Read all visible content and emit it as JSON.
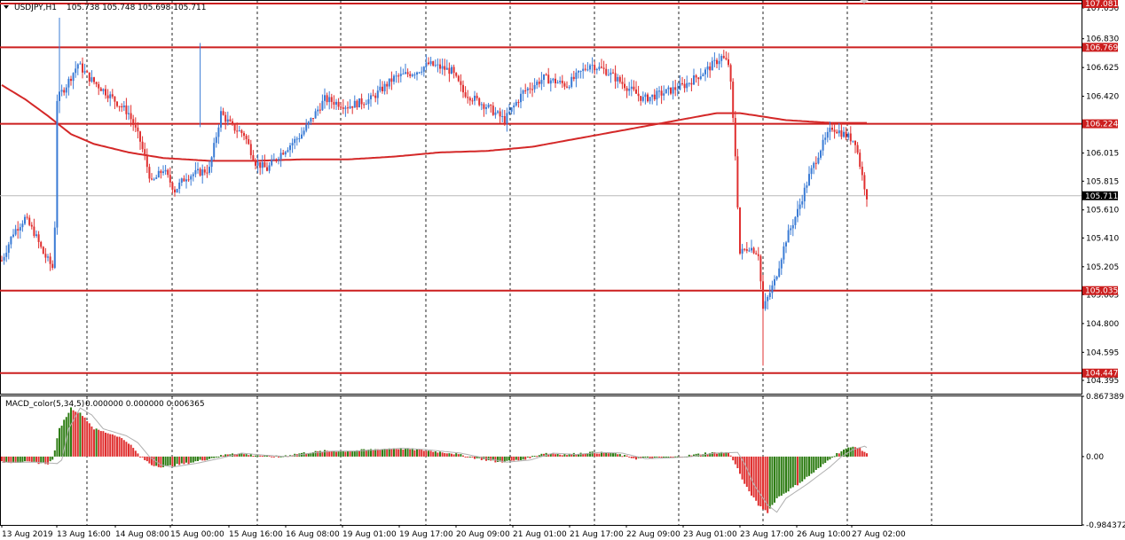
{
  "header": {
    "symbol_label": "USDJPY,H1",
    "ohlc_label": "105.738 105.748 105.698 105.711"
  },
  "macd_header": {
    "label": "MACD_color(5,34,5)",
    "values_label": "0.000000 0.000000 0.006365"
  },
  "colors": {
    "bull": "#3a7bd5",
    "bear": "#e03030",
    "level_line": "#cc1f1f",
    "ma_line": "#d42828",
    "macd_up": "#2e7d14",
    "macd_down": "#e03030",
    "signal": "#b0b0b0",
    "grid": "#000000"
  },
  "chart_data": [
    {
      "type": "candlestick",
      "symbol": "USDJPY",
      "timeframe": "H1",
      "ylim": [
        104.3,
        107.1
      ],
      "y_ticks": [
        "107.050",
        "106.830",
        "106.625",
        "106.420",
        "106.015",
        "105.815",
        "105.610",
        "105.410",
        "105.205",
        "105.005",
        "104.800",
        "104.595",
        "104.395"
      ],
      "price_levels": [
        {
          "value": 107.081,
          "label": "107.081"
        },
        {
          "value": 106.769,
          "label": "106.769"
        },
        {
          "value": 106.224,
          "label": "106.224"
        },
        {
          "value": 105.035,
          "label": "105.035"
        },
        {
          "value": 104.447,
          "label": "104.447"
        }
      ],
      "current_price": {
        "value": 105.711,
        "label": "105.711"
      },
      "x_labels": [
        "13 Aug 2019",
        "13 Aug 16:00",
        "14 Aug 08:00",
        "15 Aug 00:00",
        "15 Aug 16:00",
        "16 Aug 08:00",
        "19 Aug 01:00",
        "19 Aug 17:00",
        "20 Aug 09:00",
        "21 Aug 01:00",
        "21 Aug 17:00",
        "22 Aug 09:00",
        "23 Aug 01:00",
        "23 Aug 17:00",
        "26 Aug 10:00",
        "27 Aug 02:00"
      ],
      "close_path": [
        [
          0,
          105.25
        ],
        [
          5,
          105.45
        ],
        [
          10,
          105.55
        ],
        [
          14,
          105.45
        ],
        [
          18,
          105.3
        ],
        [
          22,
          105.2
        ],
        [
          23,
          105.5
        ],
        [
          24,
          106.4
        ],
        [
          28,
          106.5
        ],
        [
          33,
          106.65
        ],
        [
          38,
          106.55
        ],
        [
          45,
          106.45
        ],
        [
          55,
          106.3
        ],
        [
          60,
          106.1
        ],
        [
          65,
          105.8
        ],
        [
          70,
          105.9
        ],
        [
          75,
          105.75
        ],
        [
          80,
          105.85
        ],
        [
          90,
          105.9
        ],
        [
          95,
          106.3
        ],
        [
          100,
          106.2
        ],
        [
          105,
          106.15
        ],
        [
          110,
          105.95
        ],
        [
          115,
          105.9
        ],
        [
          120,
          106.0
        ],
        [
          130,
          106.15
        ],
        [
          140,
          106.4
        ],
        [
          150,
          106.35
        ],
        [
          160,
          106.4
        ],
        [
          170,
          106.55
        ],
        [
          180,
          106.6
        ],
        [
          185,
          106.65
        ],
        [
          195,
          106.6
        ],
        [
          200,
          106.45
        ],
        [
          210,
          106.35
        ],
        [
          218,
          106.25
        ],
        [
          226,
          106.45
        ],
        [
          235,
          106.55
        ],
        [
          245,
          106.5
        ],
        [
          255,
          106.65
        ],
        [
          262,
          106.6
        ],
        [
          270,
          106.5
        ],
        [
          278,
          106.4
        ],
        [
          288,
          106.45
        ],
        [
          296,
          106.5
        ],
        [
          305,
          106.6
        ],
        [
          312,
          106.7
        ],
        [
          315,
          106.65
        ],
        [
          316,
          106.5
        ],
        [
          318,
          106.0
        ],
        [
          320,
          105.3
        ],
        [
          324,
          105.35
        ],
        [
          328,
          105.3
        ],
        [
          330,
          104.9
        ],
        [
          335,
          105.1
        ],
        [
          340,
          105.4
        ],
        [
          345,
          105.6
        ],
        [
          350,
          105.85
        ],
        [
          355,
          106.05
        ],
        [
          360,
          106.2
        ],
        [
          365,
          106.15
        ],
        [
          370,
          106.1
        ],
        [
          373,
          105.85
        ],
        [
          375,
          105.71
        ]
      ],
      "ma_path": [
        [
          0,
          106.5
        ],
        [
          10,
          106.4
        ],
        [
          20,
          106.28
        ],
        [
          30,
          106.15
        ],
        [
          40,
          106.08
        ],
        [
          55,
          106.02
        ],
        [
          70,
          105.98
        ],
        [
          90,
          105.96
        ],
        [
          110,
          105.96
        ],
        [
          130,
          105.97
        ],
        [
          150,
          105.97
        ],
        [
          170,
          105.99
        ],
        [
          190,
          106.02
        ],
        [
          210,
          106.03
        ],
        [
          230,
          106.06
        ],
        [
          250,
          106.12
        ],
        [
          270,
          106.18
        ],
        [
          290,
          106.24
        ],
        [
          310,
          106.3
        ],
        [
          320,
          106.3
        ],
        [
          340,
          106.25
        ],
        [
          360,
          106.23
        ],
        [
          375,
          106.23
        ]
      ]
    },
    {
      "type": "bar",
      "name": "MACD_color(5,34,5)",
      "ylim": [
        -0.984372,
        0.867389
      ],
      "y_ticks": [
        "0.867389",
        "0.00",
        "-0.984372"
      ],
      "hist_path": [
        [
          0,
          -0.08
        ],
        [
          10,
          -0.08
        ],
        [
          20,
          -0.1
        ],
        [
          22,
          -0.05
        ],
        [
          23,
          0.1
        ],
        [
          25,
          0.4
        ],
        [
          30,
          0.7
        ],
        [
          35,
          0.6
        ],
        [
          40,
          0.4
        ],
        [
          45,
          0.35
        ],
        [
          50,
          0.3
        ],
        [
          55,
          0.2
        ],
        [
          60,
          0.0
        ],
        [
          65,
          -0.12
        ],
        [
          70,
          -0.15
        ],
        [
          80,
          -0.1
        ],
        [
          90,
          -0.03
        ],
        [
          100,
          0.05
        ],
        [
          110,
          0.02
        ],
        [
          120,
          0.0
        ],
        [
          130,
          0.05
        ],
        [
          140,
          0.08
        ],
        [
          150,
          0.08
        ],
        [
          170,
          0.12
        ],
        [
          180,
          0.1
        ],
        [
          195,
          0.05
        ],
        [
          205,
          -0.02
        ],
        [
          215,
          -0.08
        ],
        [
          225,
          -0.05
        ],
        [
          235,
          0.05
        ],
        [
          245,
          0.03
        ],
        [
          255,
          0.06
        ],
        [
          265,
          0.05
        ],
        [
          275,
          -0.03
        ],
        [
          285,
          -0.02
        ],
        [
          295,
          0.0
        ],
        [
          305,
          0.05
        ],
        [
          315,
          0.06
        ],
        [
          318,
          -0.1
        ],
        [
          322,
          -0.4
        ],
        [
          328,
          -0.7
        ],
        [
          332,
          -0.8
        ],
        [
          336,
          -0.6
        ],
        [
          345,
          -0.4
        ],
        [
          355,
          -0.15
        ],
        [
          360,
          0.0
        ],
        [
          365,
          0.1
        ],
        [
          370,
          0.15
        ],
        [
          375,
          0.05
        ]
      ]
    }
  ]
}
